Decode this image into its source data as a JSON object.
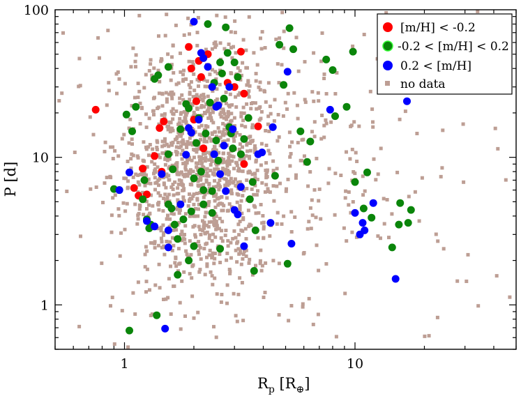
{
  "chart_data": {
    "type": "scatter",
    "x_scale": "log",
    "y_scale": "log",
    "xlim": [
      0.5,
      50
    ],
    "ylim": [
      0.5,
      100
    ],
    "xlabel": "Rp [R⊕]",
    "ylabel": "P [d]",
    "x_ticks": [
      {
        "value": 1,
        "label": "1"
      },
      {
        "value": 10,
        "label": "10"
      }
    ],
    "y_ticks": [
      {
        "value": 1,
        "label": "1"
      },
      {
        "value": 10,
        "label": "10"
      },
      {
        "value": 100,
        "label": "100"
      }
    ],
    "legend_position": "top-right",
    "background_sample": {
      "name": "no data",
      "color": "#bd9e94",
      "marker": "square",
      "count": 1500,
      "note": "dense cloud; values generated procedurally to mimic distribution"
    },
    "series": [
      {
        "name": "[m/H] < -0.2",
        "color": "#ff0000",
        "marker": "circle",
        "points": [
          [
            0.75,
            21
          ],
          [
            1.15,
            5.5
          ],
          [
            1.25,
            5.6
          ],
          [
            1.1,
            6.2
          ],
          [
            1.2,
            8.4
          ],
          [
            1.35,
            10.2
          ],
          [
            1.45,
            8.0
          ],
          [
            1.48,
            17.5
          ],
          [
            1.42,
            15.8
          ],
          [
            1.9,
            56
          ],
          [
            2.1,
            45
          ],
          [
            1.95,
            40
          ],
          [
            2.15,
            35
          ],
          [
            2.05,
            24
          ],
          [
            2.3,
            50
          ],
          [
            2.0,
            18
          ],
          [
            2.2,
            11.5
          ],
          [
            2.8,
            32
          ],
          [
            3.0,
            30
          ],
          [
            3.2,
            52
          ],
          [
            3.3,
            27
          ],
          [
            3.3,
            9.0
          ],
          [
            3.8,
            16.2
          ]
        ]
      },
      {
        "name": "-0.2 < [m/H] < 0.2",
        "color": "#0a850a",
        "marker": "circle",
        "points": [
          [
            0.9,
            6.1
          ],
          [
            0.95,
            6.0
          ],
          [
            1.02,
            19.5
          ],
          [
            1.08,
            15.0
          ],
          [
            1.12,
            22
          ],
          [
            1.2,
            5.2
          ],
          [
            1.22,
            7.0
          ],
          [
            1.25,
            3.8
          ],
          [
            1.28,
            3.3
          ],
          [
            1.3,
            3.5
          ],
          [
            1.35,
            34
          ],
          [
            1.4,
            36
          ],
          [
            1.55,
            41
          ],
          [
            1.55,
            10.5
          ],
          [
            1.55,
            4.8
          ],
          [
            1.6,
            4.5
          ],
          [
            1.62,
            8.3
          ],
          [
            1.65,
            3.5
          ],
          [
            1.7,
            2.8
          ],
          [
            1.75,
            15.5
          ],
          [
            1.8,
            3.8
          ],
          [
            1.85,
            23
          ],
          [
            1.9,
            21.5
          ],
          [
            1.9,
            2.0
          ],
          [
            1.95,
            4.3
          ],
          [
            2.0,
            7.2
          ],
          [
            2.05,
            12.5
          ],
          [
            2.1,
            18.5
          ],
          [
            2.15,
            8.0
          ],
          [
            2.2,
            6.0
          ],
          [
            2.25,
            14.5
          ],
          [
            2.3,
            80
          ],
          [
            2.35,
            23.5
          ],
          [
            2.4,
            5.9
          ],
          [
            2.45,
            32
          ],
          [
            2.5,
            13
          ],
          [
            2.55,
            9.5
          ],
          [
            2.6,
            44
          ],
          [
            2.65,
            37
          ],
          [
            2.7,
            25
          ],
          [
            2.75,
            76
          ],
          [
            2.8,
            51
          ],
          [
            2.85,
            16
          ],
          [
            2.9,
            14.5
          ],
          [
            2.95,
            11.5
          ],
          [
            3.0,
            44
          ],
          [
            3.1,
            35
          ],
          [
            3.2,
            10.5
          ],
          [
            3.3,
            13.3
          ],
          [
            3.45,
            18.5
          ],
          [
            3.5,
            5.2
          ],
          [
            3.6,
            6.8
          ],
          [
            3.65,
            1.7
          ],
          [
            3.7,
            3.2
          ],
          [
            4.5,
            7.5
          ],
          [
            4.7,
            58
          ],
          [
            4.9,
            31
          ],
          [
            5.1,
            1.9
          ],
          [
            5.2,
            75
          ],
          [
            5.4,
            54
          ],
          [
            5.8,
            15
          ],
          [
            6.2,
            9.3
          ],
          [
            6.4,
            12.8
          ],
          [
            7.5,
            46
          ],
          [
            8.0,
            39
          ],
          [
            8.2,
            19
          ],
          [
            9.2,
            22
          ],
          [
            9.8,
            52
          ],
          [
            10.0,
            6.8
          ],
          [
            10.9,
            4.5
          ],
          [
            11.3,
            7.9
          ],
          [
            11.8,
            3.9
          ],
          [
            14.5,
            2.45
          ],
          [
            15.5,
            3.5
          ],
          [
            15.7,
            4.9
          ],
          [
            17.0,
            3.6
          ],
          [
            17.5,
            4.4
          ],
          [
            1.05,
            0.67
          ],
          [
            1.38,
            0.85
          ],
          [
            2.0,
            2.5
          ],
          [
            1.7,
            1.6
          ],
          [
            2.4,
            4.2
          ],
          [
            2.6,
            2.4
          ],
          [
            2.2,
            4.8
          ]
        ]
      },
      {
        "name": "0.2 < [m/H]",
        "color": "#0000ff",
        "marker": "circle",
        "points": [
          [
            0.95,
            6.0
          ],
          [
            1.05,
            7.9
          ],
          [
            1.25,
            3.7
          ],
          [
            1.35,
            3.4
          ],
          [
            1.45,
            7.7
          ],
          [
            1.5,
            0.69
          ],
          [
            1.55,
            2.45
          ],
          [
            1.55,
            3.2
          ],
          [
            1.75,
            4.8
          ],
          [
            1.85,
            10.4
          ],
          [
            1.9,
            15.8
          ],
          [
            1.95,
            14.7
          ],
          [
            2.0,
            83
          ],
          [
            2.15,
            51
          ],
          [
            2.2,
            47
          ],
          [
            2.3,
            41
          ],
          [
            2.4,
            30
          ],
          [
            2.45,
            10.5
          ],
          [
            2.5,
            22
          ],
          [
            2.6,
            7.7
          ],
          [
            2.7,
            12
          ],
          [
            2.75,
            5.9
          ],
          [
            2.85,
            30
          ],
          [
            2.95,
            15.5
          ],
          [
            3.0,
            4.4
          ],
          [
            3.1,
            4.1
          ],
          [
            3.2,
            6.3
          ],
          [
            3.3,
            2.5
          ],
          [
            3.8,
            10.5
          ],
          [
            3.95,
            10.8
          ],
          [
            4.3,
            3.6
          ],
          [
            4.4,
            16
          ],
          [
            5.1,
            38
          ],
          [
            5.3,
            2.6
          ],
          [
            7.8,
            21
          ],
          [
            10.0,
            4.2
          ],
          [
            10.5,
            3.0
          ],
          [
            10.8,
            3.6
          ],
          [
            11.0,
            3.2
          ],
          [
            12.0,
            4.9
          ],
          [
            15.0,
            1.5
          ],
          [
            16.8,
            24
          ],
          [
            2.55,
            22.5
          ],
          [
            2.1,
            18
          ]
        ]
      }
    ]
  },
  "legend": {
    "entries": [
      {
        "label": "[m/H] < -0.2",
        "color": "#ff0000",
        "marker": "circle"
      },
      {
        "label": "-0.2 < [m/H] < 0.2",
        "color": "#0a850a",
        "marker": "circle"
      },
      {
        "label": "0.2 < [m/H]",
        "color": "#0000ff",
        "marker": "circle"
      },
      {
        "label": "no data",
        "color": "#bd9e94",
        "marker": "square"
      }
    ]
  }
}
